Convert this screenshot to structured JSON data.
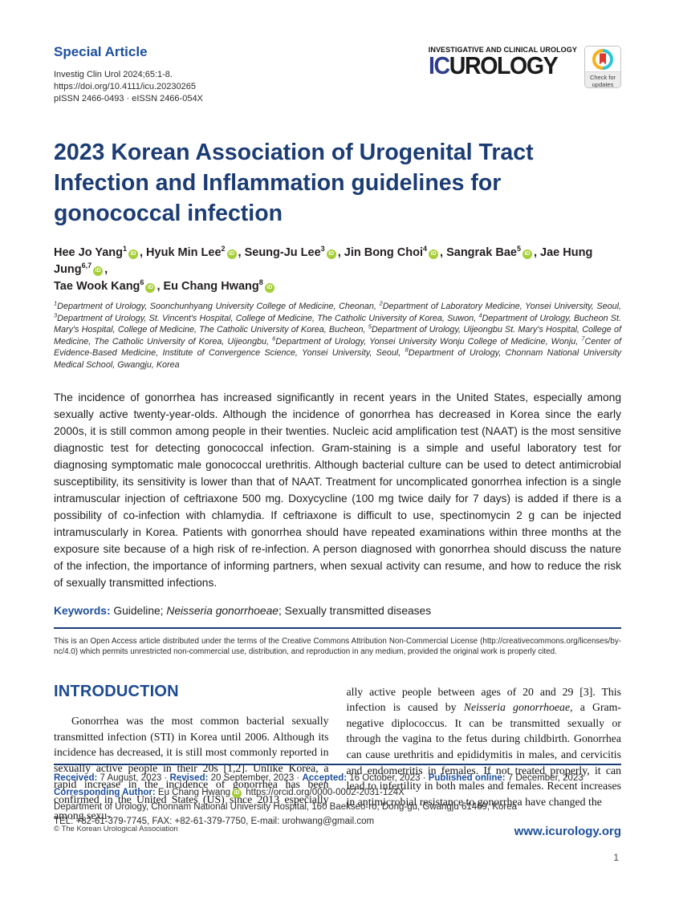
{
  "header": {
    "article_type": "Special Article",
    "citation_lines": [
      "Investig Clin Urol 2024;65:1-8.",
      "https://doi.org/10.4111/icu.20230265",
      "pISSN 2466-0493 · eISSN 2466-054X"
    ],
    "journal_tagline": "INVESTIGATIVE AND CLINICAL UROLOGY",
    "journal_logo_ic": "IC",
    "journal_logo_urology": "UROLOGY",
    "crossmark_label": "Check for updates"
  },
  "title": "2023 Korean Association of Urogenital Tract Infection and Inflammation guidelines for gonococcal infection",
  "authors_parts": [
    {
      "t": "Hee Jo Yang"
    },
    {
      "sup": "1"
    },
    {
      "orcid": true
    },
    {
      "t": ", "
    },
    {
      "t": "Hyuk Min Lee"
    },
    {
      "sup": "2"
    },
    {
      "orcid": true
    },
    {
      "t": ", "
    },
    {
      "t": "Seung-Ju Lee"
    },
    {
      "sup": "3"
    },
    {
      "orcid": true
    },
    {
      "t": ", "
    },
    {
      "t": "Jin Bong Choi"
    },
    {
      "sup": "4"
    },
    {
      "orcid": true
    },
    {
      "t": ", "
    },
    {
      "t": "Sangrak Bae"
    },
    {
      "sup": "5"
    },
    {
      "orcid": true
    },
    {
      "t": ", "
    },
    {
      "t": "Jae Hung Jung"
    },
    {
      "sup": "6,7"
    },
    {
      "orcid": true
    },
    {
      "t": ","
    },
    {
      "br": true
    },
    {
      "t": "Tae Wook Kang"
    },
    {
      "sup": "6"
    },
    {
      "orcid": true
    },
    {
      "t": ", "
    },
    {
      "t": "Eu Chang Hwang"
    },
    {
      "sup": "8"
    },
    {
      "orcid": true
    }
  ],
  "affiliations_parts": [
    {
      "sup": "1"
    },
    {
      "t": "Department of Urology, Soonchunhyang University College of Medicine, Cheonan, "
    },
    {
      "sup": "2"
    },
    {
      "t": "Department of Laboratory Medicine, Yonsei University, Seoul, "
    },
    {
      "sup": "3"
    },
    {
      "t": "Department of Urology, St. Vincent's Hospital, College of Medicine, The Catholic University of Korea, Suwon, "
    },
    {
      "sup": "4"
    },
    {
      "t": "Department of Urology, Bucheon St. Mary's Hospital, College of Medicine, The Catholic University of Korea, Bucheon, "
    },
    {
      "sup": "5"
    },
    {
      "t": "Department of Urology, Uijeongbu St. Mary's Hospital, College of Medicine, The Catholic University of Korea, Uijeongbu, "
    },
    {
      "sup": "6"
    },
    {
      "t": "Department of Urology, Yonsei University Wonju College of Medicine, Wonju, "
    },
    {
      "sup": "7"
    },
    {
      "t": "Center of Evidence-Based Medicine, Institute of Convergence Science, Yonsei University, Seoul, "
    },
    {
      "sup": "8"
    },
    {
      "t": "Department of Urology, Chonnam National University Medical School, Gwangju, Korea"
    }
  ],
  "abstract": "The incidence of gonorrhea has increased significantly in recent years in the United States, especially among sexually active twenty-year-olds. Although the incidence of gonorrhea has decreased in Korea since the early 2000s, it is still common among people in their twenties. Nucleic acid amplification test (NAAT) is the most sensitive diagnostic test for detecting gonococcal infection. Gram-staining is a simple and useful laboratory test for diagnosing symptomatic male gonococcal urethritis. Although bacterial culture can be used to detect antimicrobial susceptibility, its sensitivity is lower than that of NAAT. Treatment for uncomplicated gonorrhea infection is a single intramuscular injection of ceftriaxone 500 mg. Doxycycline (100 mg twice daily for 7 days) is added if there is a possibility of co-infection with chlamydia. If ceftriaxone is difficult to use, spectinomycin 2 g can be injected intramuscularly in Korea. Patients with gonorrhea should have repeated examinations within three months at the exposure site because of a high risk of re-infection. A person diagnosed with gonorrhea should discuss the nature of the infection, the importance of informing partners, when sexual activity can resume, and how to reduce the risk of sexually transmitted infections.",
  "keywords_label": "Keywords:",
  "keywords_parts": [
    {
      "t": "Guideline; "
    },
    {
      "t": "Neisseria gonorrhoeae",
      "i": true
    },
    {
      "t": "; Sexually transmitted diseases"
    }
  ],
  "open_access": "This is an Open Access article distributed under the terms of the Creative Commons Attribution Non-Commercial License (http://creativecommons.org/licenses/by-nc/4.0) which permits unrestricted non-commercial use, distribution, and reproduction in any medium, provided the original work is properly cited.",
  "introduction": {
    "heading": "INTRODUCTION",
    "col_left": "Gonorrhea was the most common bacterial sexually transmitted infection (STI) in Korea until 2006. Although its incidence has decreased, it is still most commonly reported in sexually active people in their 20s [1,2]. Unlike Korea, a rapid increase in the incidence of gonorrhea has been confirmed in the United States (US) since 2013 especially among sexu-",
    "col_right_parts": [
      {
        "t": "ally active people between ages of 20 and 29 [3]. This infection is caused by "
      },
      {
        "t": "Neisseria gonorrhoeae",
        "i": true
      },
      {
        "t": ", a Gram-negative diplococcus. It can be transmitted sexually or through the vagina to the fetus during childbirth. Gonorrhea can cause urethritis and epididymitis in males, and cervicitis and endometritis in females. If not treated properly, it can lead to infertility in both males and females. Recent increases in antimicrobial resistance to gonorrhea have changed the"
      }
    ]
  },
  "article_info": {
    "dates_parts": [
      {
        "t": "Received: ",
        "b": true,
        "blue": true
      },
      {
        "t": "7 August, 2023"
      },
      {
        "t": "  ·  "
      },
      {
        "t": "Revised: ",
        "b": true,
        "blue": true
      },
      {
        "t": "20 September, 2023"
      },
      {
        "t": "  ·  "
      },
      {
        "t": "Accepted: ",
        "b": true,
        "blue": true
      },
      {
        "t": "16 October, 2023"
      },
      {
        "t": "  ·  "
      },
      {
        "t": "Published online: ",
        "b": true,
        "blue": true
      },
      {
        "t": "7 December, 2023"
      }
    ],
    "corresponding_parts": [
      {
        "t": "Corresponding Author: ",
        "b": true,
        "blue": true
      },
      {
        "t": "Eu Chang Hwang"
      },
      {
        "orcid": true
      },
      {
        "t": " https://orcid.org/0000-0002-2031-124X"
      }
    ],
    "address": "Department of Urology, Chonnam National University Hospital, 160 Baekseo-ro, Dong-gu, Gwangju 61469, Korea",
    "contact": "TEL: +82-61-379-7745, FAX: +82-61-379-7750, E-mail: urohwang@gmail.com"
  },
  "footer": {
    "copyright": "© The Korean Urological Association",
    "website": "www.icurology.org",
    "page_number": "1"
  }
}
